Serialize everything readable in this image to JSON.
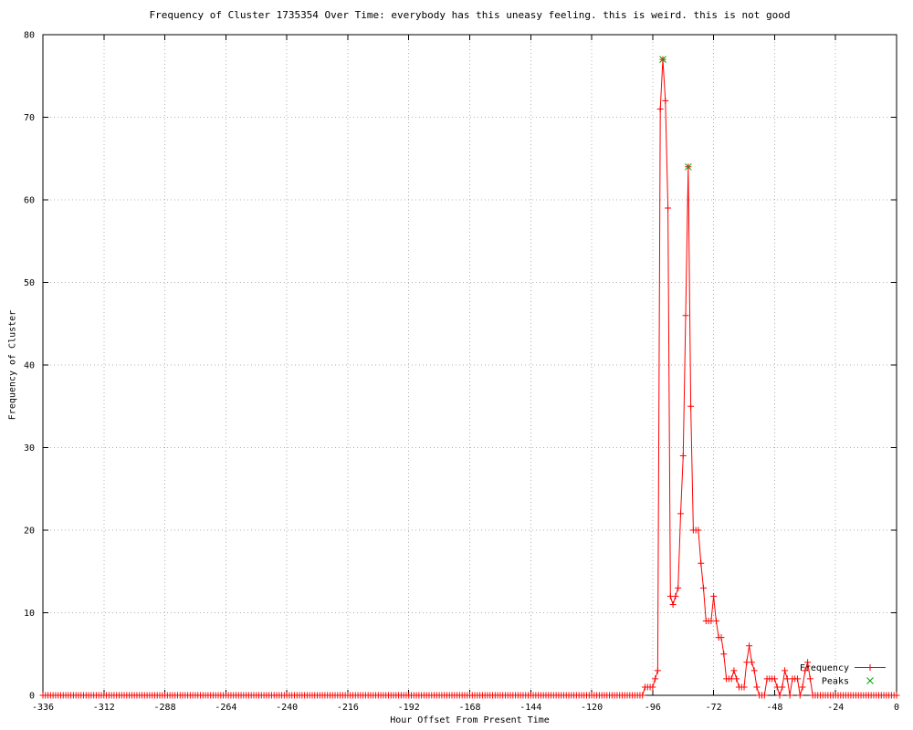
{
  "chart_data": {
    "type": "line",
    "title": "Frequency of Cluster 1735354 Over Time: everybody has this uneasy feeling. this is weird. this is not good",
    "xlabel": "Hour Offset From Present Time",
    "ylabel": "Frequency of Cluster",
    "xlim": [
      -336,
      0
    ],
    "ylim": [
      0,
      80
    ],
    "x_ticks": [
      -336,
      -312,
      -288,
      -264,
      -240,
      -216,
      -192,
      -168,
      -144,
      -120,
      -96,
      -72,
      -48,
      -24,
      0
    ],
    "y_ticks": [
      0,
      10,
      20,
      30,
      40,
      50,
      60,
      70,
      80
    ],
    "grid": true,
    "legend_position": "bottom-right",
    "colors": {
      "frequency": "#ff0000",
      "peaks": "#00a000",
      "grid": "#b0b0b0",
      "axis": "#000000",
      "background": "#ffffff"
    },
    "series": [
      {
        "name": "Frequency",
        "style": "linespoints",
        "marker": "plus",
        "color": "#ff0000",
        "x_start": -336,
        "x_step": 1,
        "values": [
          0,
          0,
          0,
          0,
          0,
          0,
          0,
          0,
          0,
          0,
          0,
          0,
          0,
          0,
          0,
          0,
          0,
          0,
          0,
          0,
          0,
          0,
          0,
          0,
          0,
          0,
          0,
          0,
          0,
          0,
          0,
          0,
          0,
          0,
          0,
          0,
          0,
          0,
          0,
          0,
          0,
          0,
          0,
          0,
          0,
          0,
          0,
          0,
          0,
          0,
          0,
          0,
          0,
          0,
          0,
          0,
          0,
          0,
          0,
          0,
          0,
          0,
          0,
          0,
          0,
          0,
          0,
          0,
          0,
          0,
          0,
          0,
          0,
          0,
          0,
          0,
          0,
          0,
          0,
          0,
          0,
          0,
          0,
          0,
          0,
          0,
          0,
          0,
          0,
          0,
          0,
          0,
          0,
          0,
          0,
          0,
          0,
          0,
          0,
          0,
          0,
          0,
          0,
          0,
          0,
          0,
          0,
          0,
          0,
          0,
          0,
          0,
          0,
          0,
          0,
          0,
          0,
          0,
          0,
          0,
          0,
          0,
          0,
          0,
          0,
          0,
          0,
          0,
          0,
          0,
          0,
          0,
          0,
          0,
          0,
          0,
          0,
          0,
          0,
          0,
          0,
          0,
          0,
          0,
          0,
          0,
          0,
          0,
          0,
          0,
          0,
          0,
          0,
          0,
          0,
          0,
          0,
          0,
          0,
          0,
          0,
          0,
          0,
          0,
          0,
          0,
          0,
          0,
          0,
          0,
          0,
          0,
          0,
          0,
          0,
          0,
          0,
          0,
          0,
          0,
          0,
          0,
          0,
          0,
          0,
          0,
          0,
          0,
          0,
          0,
          0,
          0,
          0,
          0,
          0,
          0,
          0,
          0,
          0,
          0,
          0,
          0,
          0,
          0,
          0,
          0,
          0,
          0,
          0,
          0,
          0,
          0,
          0,
          0,
          0,
          0,
          0,
          0,
          0,
          0,
          0,
          0,
          0,
          0,
          0,
          0,
          0,
          0,
          0,
          0,
          0,
          0,
          0,
          0,
          0,
          0,
          0,
          1,
          1,
          1,
          1,
          2,
          3,
          71,
          77,
          72,
          59,
          12,
          11,
          12,
          13,
          22,
          29,
          46,
          64,
          35,
          20,
          20,
          20,
          16,
          13,
          9,
          9,
          9,
          12,
          9,
          7,
          7,
          5,
          2,
          2,
          2,
          3,
          2,
          1,
          1,
          1,
          4,
          6,
          4,
          3,
          1,
          0,
          0,
          0,
          2,
          2,
          2,
          2,
          1,
          0,
          1,
          3,
          2,
          0,
          2,
          2,
          2,
          0,
          1,
          3,
          4,
          2,
          0,
          0,
          0,
          0,
          0,
          0,
          0,
          0,
          0,
          0,
          0,
          0,
          0,
          0,
          0,
          0,
          0,
          0,
          0,
          0,
          0,
          0,
          0,
          0,
          0,
          0,
          0,
          0,
          0,
          0,
          0,
          0,
          0,
          0
        ]
      },
      {
        "name": "Peaks",
        "style": "points",
        "marker": "cross",
        "color": "#00a000",
        "points": [
          [
            -92,
            77
          ],
          [
            -82,
            64
          ]
        ]
      }
    ]
  }
}
